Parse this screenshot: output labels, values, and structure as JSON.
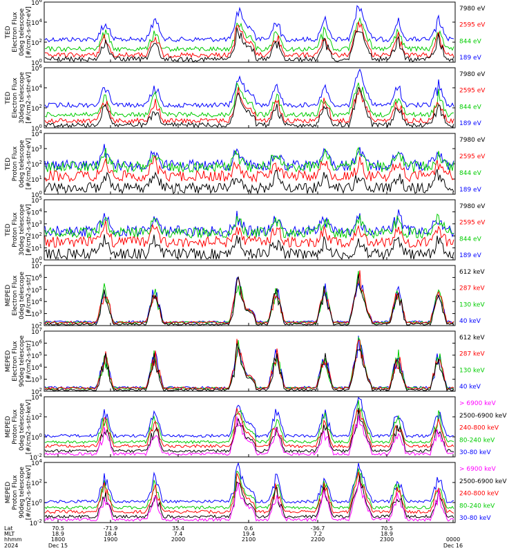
{
  "chart_data": [
    {
      "type": "line",
      "ylabel": [
        "TED",
        "Electron Flux",
        "0deg telescope",
        "[#/cm2-s-str-eV]"
      ],
      "ytick_exponents": [
        6,
        4,
        2,
        0
      ],
      "legend": [
        {
          "label": "7980 eV",
          "color": "#000000"
        },
        {
          "label": "2595 eV",
          "color": "#ff0000"
        },
        {
          "label": "844 eV",
          "color": "#00cc00"
        },
        {
          "label": "189 eV",
          "color": "#0000ff"
        }
      ]
    },
    {
      "type": "line",
      "ylabel": [
        "TED",
        "Electron Flux",
        "30deg telescope",
        "[#/cm2-s-str-eV]"
      ],
      "ytick_exponents": [
        6,
        4,
        2,
        0
      ],
      "legend": [
        {
          "label": "7980 eV",
          "color": "#000000"
        },
        {
          "label": "2595 eV",
          "color": "#ff0000"
        },
        {
          "label": "844 eV",
          "color": "#00cc00"
        },
        {
          "label": "189 eV",
          "color": "#0000ff"
        }
      ]
    },
    {
      "type": "line",
      "ylabel": [
        "TED",
        "Proton Flux",
        "0deg telescope",
        "[#/cm2-s-str-eV]"
      ],
      "ytick_exponents": [
        4,
        3,
        2,
        1,
        0
      ],
      "legend": [
        {
          "label": "7980 eV",
          "color": "#000000"
        },
        {
          "label": "2595 eV",
          "color": "#ff0000"
        },
        {
          "label": "844 eV",
          "color": "#00cc00"
        },
        {
          "label": "189 eV",
          "color": "#0000ff"
        }
      ]
    },
    {
      "type": "line",
      "ylabel": [
        "TED",
        "Proton Flux",
        "30deg telescope",
        "[#/cm2-s-str-eV]"
      ],
      "ytick_exponents": [
        5,
        4,
        3,
        2,
        1,
        0
      ],
      "legend": [
        {
          "label": "7980 eV",
          "color": "#000000"
        },
        {
          "label": "2595 eV",
          "color": "#ff0000"
        },
        {
          "label": "844 eV",
          "color": "#00cc00"
        },
        {
          "label": "189 eV",
          "color": "#0000ff"
        }
      ]
    },
    {
      "type": "line",
      "ylabel": [
        "MEPED",
        "Electron Flux",
        "0deg telescope",
        "[#/cm2-s-str]"
      ],
      "ytick_exponents": [
        7,
        6,
        5,
        4,
        3,
        2
      ],
      "legend": [
        {
          "label": "612 keV",
          "color": "#000000"
        },
        {
          "label": "287 keV",
          "color": "#ff0000"
        },
        {
          "label": "130 keV",
          "color": "#00cc00"
        },
        {
          "label": "40 keV",
          "color": "#0000ff"
        }
      ]
    },
    {
      "type": "line",
      "ylabel": [
        "MEPED",
        "Electron Flux",
        "90deg telescope",
        "[#/cm2-s-str]"
      ],
      "ytick_exponents": [
        7,
        6,
        5,
        4,
        3,
        2
      ],
      "legend": [
        {
          "label": "612 keV",
          "color": "#000000"
        },
        {
          "label": "287 keV",
          "color": "#ff0000"
        },
        {
          "label": "130 keV",
          "color": "#00cc00"
        },
        {
          "label": "40 keV",
          "color": "#0000ff"
        }
      ]
    },
    {
      "type": "line",
      "ylabel": [
        "MEPED",
        "Proton Flux",
        "0deg telescope",
        "[#/cm2-s-str-keV]"
      ],
      "ytick_exponents": [
        4,
        2,
        0,
        -2
      ],
      "legend": [
        {
          "label": "> 6900 keV",
          "color": "#ff00ff"
        },
        {
          "label": "2500-6900 keV",
          "color": "#000000"
        },
        {
          "label": "240-800 keV",
          "color": "#ff0000"
        },
        {
          "label": "80-240 keV",
          "color": "#00cc00"
        },
        {
          "label": "30-80 keV",
          "color": "#0000ff"
        }
      ]
    },
    {
      "type": "line",
      "ylabel": [
        "MEPED",
        "Proton Flux",
        "90deg telescope",
        "[#/cm2-s-str-keV]"
      ],
      "ytick_exponents": [
        4,
        2,
        0,
        -2
      ],
      "legend": [
        {
          "label": "> 6900 keV",
          "color": "#ff00ff"
        },
        {
          "label": "2500-6900 keV",
          "color": "#000000"
        },
        {
          "label": "240-800 keV",
          "color": "#ff0000"
        },
        {
          "label": "80-240 keV",
          "color": "#00cc00"
        },
        {
          "label": "30-80 keV",
          "color": "#0000ff"
        }
      ]
    }
  ],
  "x_axis": {
    "row_labels": [
      "Lat",
      "MLT",
      "hhmm",
      "2024"
    ],
    "ticks": [
      {
        "lat": "70.5",
        "mlt": "18.9",
        "hhmm": "1800",
        "date": "Dec 15"
      },
      {
        "lat": "-71.9",
        "mlt": "18.4",
        "hhmm": "1900",
        "date": ""
      },
      {
        "lat": "35.4",
        "mlt": "7.4",
        "hhmm": "2000",
        "date": ""
      },
      {
        "lat": "0.6",
        "mlt": "19.4",
        "hhmm": "2100",
        "date": ""
      },
      {
        "lat": "-36.7",
        "mlt": "7.2",
        "hhmm": "2200",
        "date": ""
      },
      {
        "lat": "70.5",
        "mlt": "18.9",
        "hhmm": "2300",
        "date": ""
      },
      {
        "lat": "",
        "mlt": "",
        "hhmm": "0000",
        "date": "Dec 16"
      }
    ]
  }
}
